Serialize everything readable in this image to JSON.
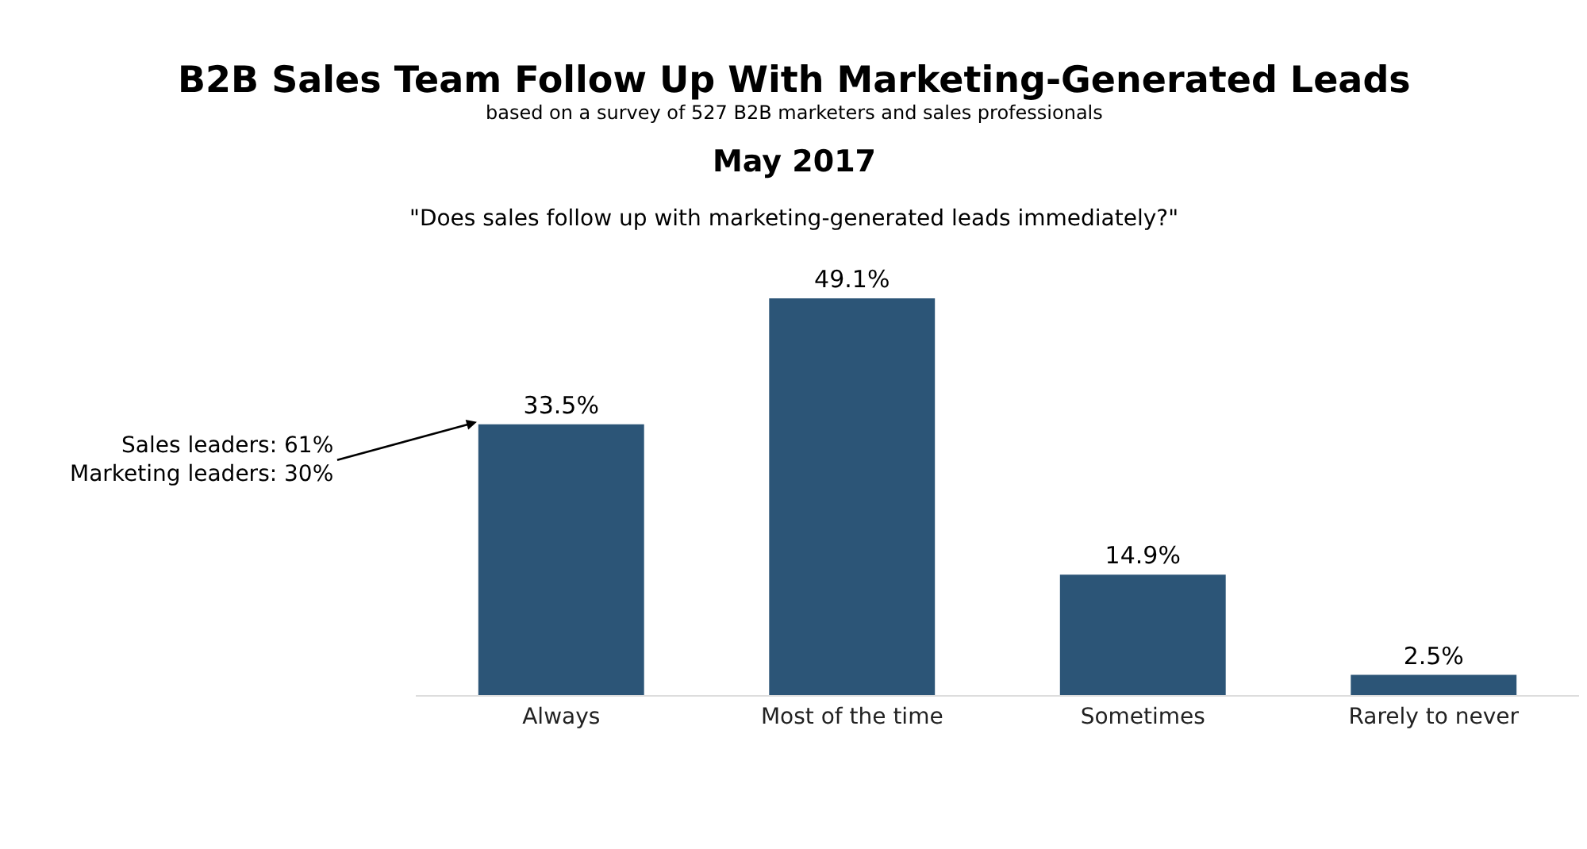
{
  "chart_data": {
    "type": "bar",
    "title": "B2B Sales Team Follow Up With Marketing-Generated Leads",
    "subtitle": "based on a survey of 527 B2B marketers and sales professionals",
    "categories": [
      "Always",
      "Most of the time",
      "Sometimes",
      "Rarely to never"
    ],
    "values": [
      33.5,
      49.1,
      14.9,
      2.5
    ],
    "value_labels": [
      "33.5%",
      "49.1%",
      "14.9%",
      "2.5%"
    ],
    "color": "#2c5577",
    "annotations": [
      "May 2017",
      "\"Does sales follow up with marketing-generated leads immediately?\"",
      "Sales leaders: 61%\nMarketing leaders: 30%"
    ]
  }
}
